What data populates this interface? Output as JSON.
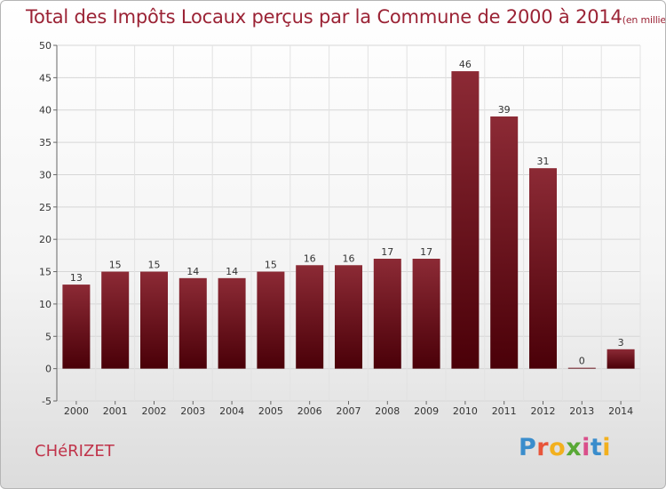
{
  "chart_data": {
    "type": "bar",
    "title": "Total des Impôts Locaux perçus par la Commune de 2000 à 2014",
    "subtitle": "(en milliers d'€)",
    "categories": [
      "2000",
      "2001",
      "2002",
      "2003",
      "2004",
      "2005",
      "2006",
      "2007",
      "2008",
      "2009",
      "2010",
      "2011",
      "2012",
      "2013",
      "2014"
    ],
    "values": [
      13,
      15,
      15,
      14,
      14,
      15,
      16,
      16,
      17,
      17,
      46,
      39,
      31,
      0,
      3
    ],
    "ylim": [
      -5,
      50
    ],
    "yticks": [
      -5,
      0,
      5,
      10,
      15,
      20,
      25,
      30,
      35,
      40,
      45,
      50
    ],
    "grid": true,
    "xlabel": "",
    "ylabel": "",
    "bar_color": "#7a1a24"
  },
  "footer": {
    "commune": "CHéRIZET",
    "brand": {
      "p": "P",
      "r": "r",
      "o": "o",
      "x": "x",
      "i1": "i",
      "t": "t",
      "i2": "i"
    }
  }
}
